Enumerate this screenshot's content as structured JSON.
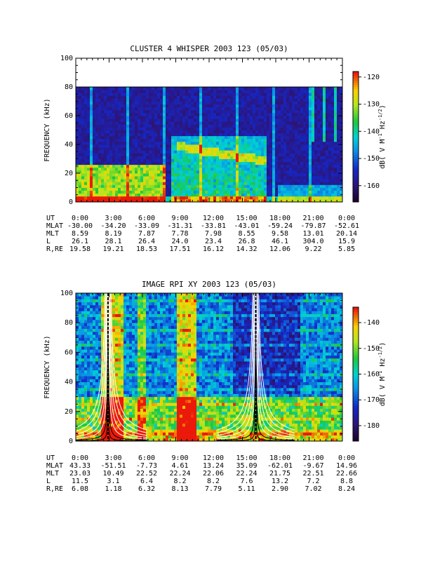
{
  "chart_data": [
    {
      "type": "heatmap",
      "title": "CLUSTER 4 WHISPER 2003 123 (05/03)",
      "ylabel": "FREQUENCY (kHz)",
      "colorbar_label": "dB( V M⁻¹ Hz⁻¹ᐟ²)",
      "colorbar_label_parts": [
        "dB( V M",
        "-1",
        " Hz",
        "-1/2",
        ")"
      ],
      "ylim": [
        0,
        100
      ],
      "yticks": [
        "0",
        "20",
        "40",
        "60",
        "80",
        "100"
      ],
      "data_ymax": 80,
      "colorbar_range": [
        -166,
        -118
      ],
      "colorbar_ticks": [
        "-120",
        "-130",
        "-140",
        "-150",
        "-160"
      ],
      "colorbar_tick_values": [
        -120,
        -130,
        -140,
        -150,
        -160
      ],
      "x_tick_hours": [
        0,
        3,
        6,
        9,
        12,
        15,
        18,
        21,
        24
      ],
      "ephemeris_rows": [
        {
          "label": "UT",
          "values": [
            "0:00",
            "3:00",
            "6:00",
            "9:00",
            "12:00",
            "15:00",
            "18:00",
            "21:00",
            "0:00"
          ]
        },
        {
          "label": "MLAT",
          "values": [
            "-30.00",
            "-34.20",
            "-33.09",
            "-31.31",
            "-33.81",
            "-43.01",
            "-59.24",
            "-79.87",
            "-52.61"
          ]
        },
        {
          "label": "MLT",
          "values": [
            "8.59",
            "8.19",
            "7.87",
            "7.78",
            "7.98",
            "8.55",
            "9.58",
            "13.01",
            "20.14"
          ]
        },
        {
          "label": "L",
          "values": [
            "26.1",
            "28.1",
            "26.4",
            "24.0",
            "23.4",
            "26.8",
            "46.1",
            "304.0",
            "15.9"
          ]
        },
        {
          "label": "R,RE",
          "values": [
            "19.58",
            "19.21",
            "18.53",
            "17.51",
            "16.12",
            "14.32",
            "12.06",
            "9.22",
            "5.85"
          ]
        }
      ]
    },
    {
      "type": "heatmap",
      "title": "IMAGE RPI XY 2003 123 (05/03)",
      "ylabel": "FREQUENCY (kHz)",
      "colorbar_label": "dB( V M⁻¹ Hz⁻¹ᐟ²)",
      "colorbar_label_parts": [
        "dB( V M",
        "-1",
        " Hz",
        "-1/2",
        ")"
      ],
      "ylim": [
        0,
        100
      ],
      "yticks": [
        "0",
        "20",
        "40",
        "60",
        "80",
        "100"
      ],
      "data_ymax": 100,
      "colorbar_range": [
        -186,
        -134
      ],
      "colorbar_ticks": [
        "-140",
        "-150",
        "-160",
        "-170",
        "-180"
      ],
      "colorbar_tick_values": [
        -140,
        -150,
        -160,
        -170,
        -180
      ],
      "x_tick_hours": [
        0,
        3,
        6,
        9,
        12,
        15,
        18,
        21,
        24
      ],
      "ephemeris_rows": [
        {
          "label": "UT",
          "values": [
            "0:00",
            "3:00",
            "6:00",
            "9:00",
            "12:00",
            "15:00",
            "18:00",
            "21:00",
            "0:00"
          ]
        },
        {
          "label": "MLAT",
          "values": [
            "43.33",
            "-51.51",
            "-7.73",
            "4.61",
            "13.24",
            "35.09",
            "-62.01",
            "-9.67",
            "14.96"
          ]
        },
        {
          "label": "MLT",
          "values": [
            "23.03",
            "10.49",
            "22.52",
            "22.24",
            "22.06",
            "22.24",
            "21.75",
            "22.51",
            "22.66"
          ]
        },
        {
          "label": "L",
          "values": [
            "11.5",
            "3.1",
            "6.4",
            "8.2",
            "8.2",
            "7.6",
            "13.2",
            "7.2",
            "8.8"
          ]
        },
        {
          "label": "R,RE",
          "values": [
            "6.08",
            "1.18",
            "6.32",
            "8.13",
            "7.79",
            "5.11",
            "2.90",
            "7.02",
            "8.24"
          ]
        }
      ]
    }
  ]
}
